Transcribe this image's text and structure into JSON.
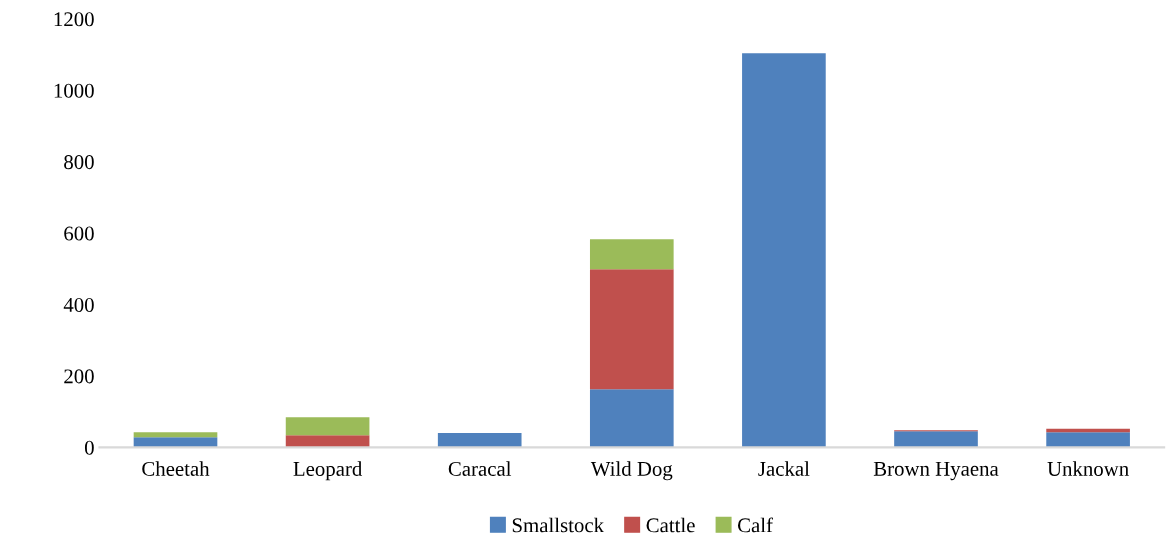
{
  "chart_data": {
    "type": "bar",
    "stacked": true,
    "categories": [
      "Cheetah",
      "Leopard",
      "Caracal",
      "Wild Dog",
      "Jackal",
      "Brown Hyaena",
      "Unknown"
    ],
    "series": [
      {
        "name": "Smallstock",
        "color": "#4f81bd",
        "values": [
          28,
          0,
          40,
          163,
          1104,
          45,
          42
        ]
      },
      {
        "name": "Cattle",
        "color": "#c0504d",
        "values": [
          0,
          34,
          0,
          336,
          0,
          3,
          10
        ]
      },
      {
        "name": "Calf",
        "color": "#9bbb59",
        "values": [
          14,
          50,
          0,
          84,
          0,
          0,
          0
        ]
      }
    ],
    "ylim": [
      0,
      1200
    ],
    "yticks": [
      0,
      200,
      400,
      600,
      800,
      1000,
      1200
    ],
    "grid": false,
    "legend": "bottom"
  }
}
